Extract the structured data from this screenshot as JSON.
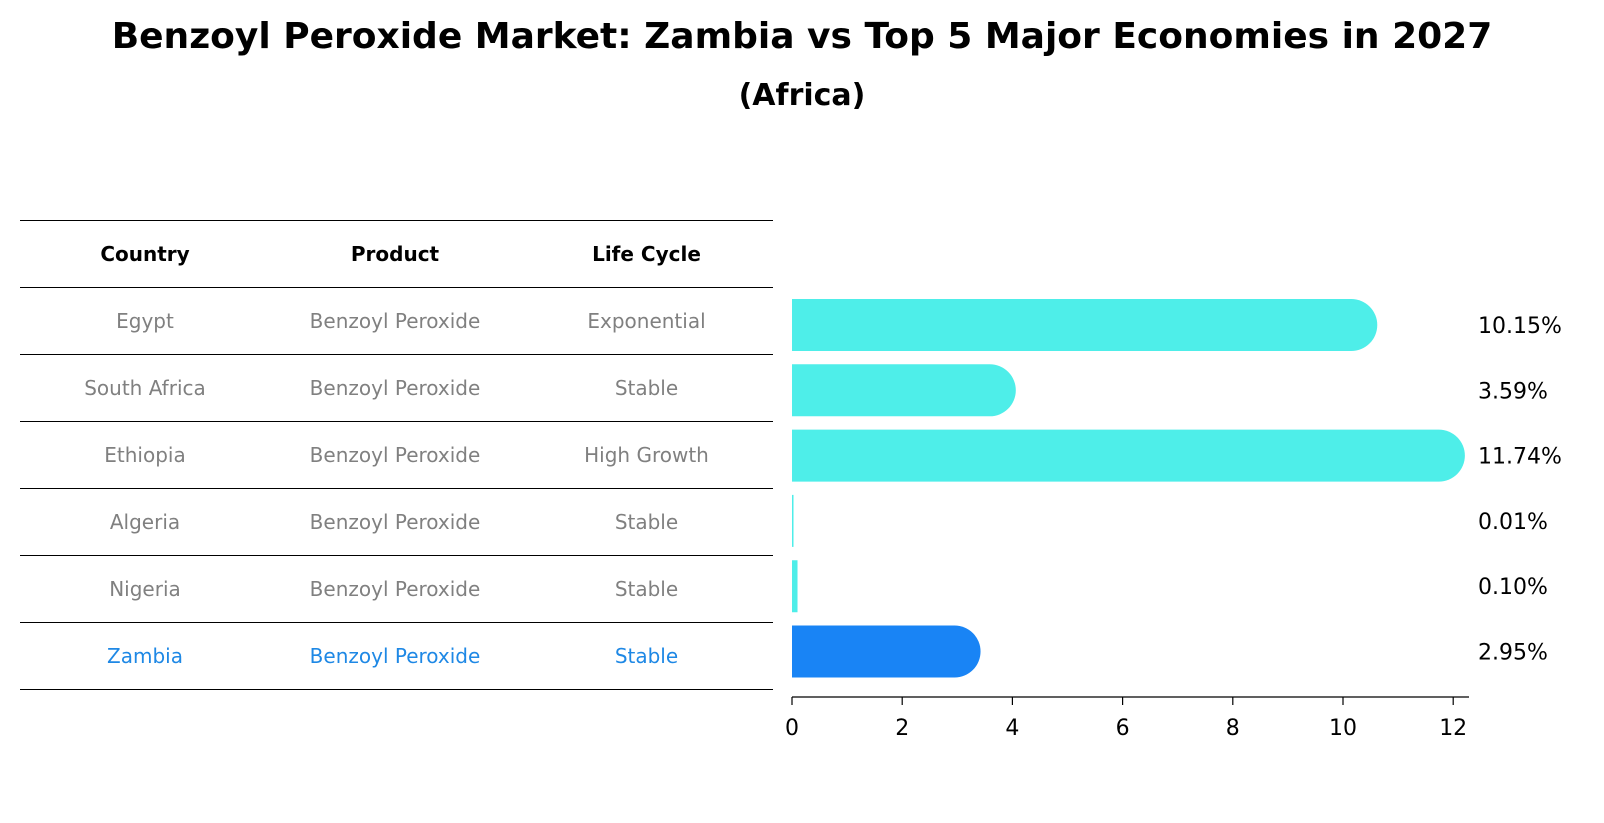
{
  "header": {
    "title": "Benzoyl Peroxide Market: Zambia vs Top 5 Major Economies in 2027",
    "subtitle": "(Africa)"
  },
  "table": {
    "columns": [
      "Country",
      "Product",
      "Life Cycle"
    ],
    "rows": [
      {
        "country": "Egypt",
        "product": "Benzoyl Peroxide",
        "life_cycle": "Exponential"
      },
      {
        "country": "South Africa",
        "product": "Benzoyl Peroxide",
        "life_cycle": "Stable"
      },
      {
        "country": "Ethiopia",
        "product": "Benzoyl Peroxide",
        "life_cycle": "High Growth"
      },
      {
        "country": "Algeria",
        "product": "Benzoyl Peroxide",
        "life_cycle": "Stable"
      },
      {
        "country": "Nigeria",
        "product": "Benzoyl Peroxide",
        "life_cycle": "Stable"
      },
      {
        "country": "Zambia",
        "product": "Benzoyl Peroxide",
        "life_cycle": "Stable"
      }
    ],
    "highlight_row": "Zambia"
  },
  "chart_data": {
    "type": "bar",
    "orientation": "horizontal",
    "categories": [
      "Egypt",
      "South Africa",
      "Ethiopia",
      "Algeria",
      "Nigeria",
      "Zambia"
    ],
    "values": [
      10.15,
      3.59,
      11.74,
      0.01,
      0.1,
      2.95
    ],
    "value_labels": [
      "10.15%",
      "3.59%",
      "11.74%",
      "0.01%",
      "0.10%",
      "2.95%"
    ],
    "xlim": [
      0,
      12.3
    ],
    "xticks": [
      0,
      2,
      4,
      6,
      8,
      10,
      12
    ],
    "grid": false,
    "colors": {
      "default": "#4eeee9",
      "highlight": "#1984f5"
    },
    "highlight": "Zambia"
  }
}
